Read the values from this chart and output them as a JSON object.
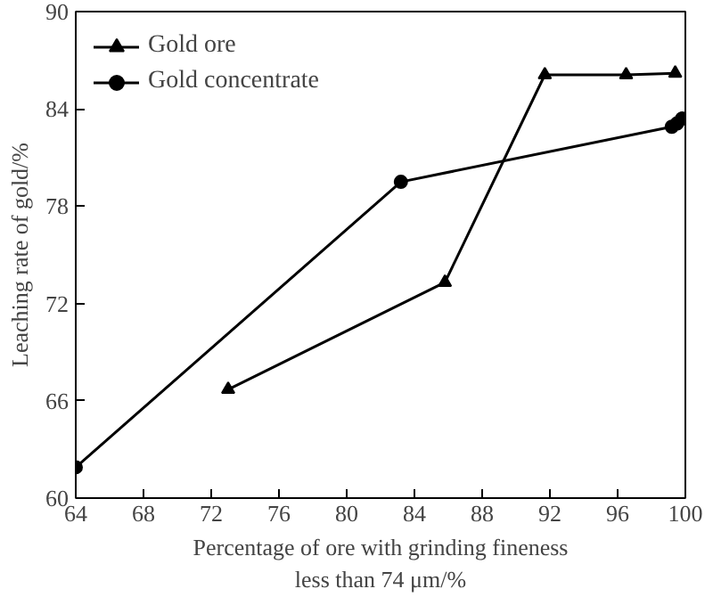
{
  "chart_data": {
    "type": "line",
    "xlabel": "Percentage of ore with grinding fineness\nless than 74 μm/%",
    "ylabel": "Leaching rate of gold/%",
    "xlim": [
      64,
      100
    ],
    "xticks": [
      64,
      68,
      72,
      76,
      80,
      84,
      88,
      92,
      96,
      100
    ],
    "ylim": [
      60,
      90
    ],
    "yticks": [
      60,
      66,
      72,
      78,
      84,
      90
    ],
    "grid": false,
    "legend": "top left",
    "line_style": "solid",
    "series": [
      {
        "name": "Gold ore",
        "color": "#000000",
        "marker": "triangle",
        "x": [
          73,
          85.8,
          91.7,
          96.5,
          99.4
        ],
        "values": [
          66.7,
          73.3,
          86.1,
          86.1,
          86.2
        ]
      },
      {
        "name": "Gold concentrate",
        "color": "#000000",
        "marker": "circle",
        "x": [
          64,
          83.2,
          99.2,
          99.5,
          99.8
        ],
        "values": [
          61.9,
          79.5,
          82.9,
          83.1,
          83.4
        ]
      }
    ]
  }
}
